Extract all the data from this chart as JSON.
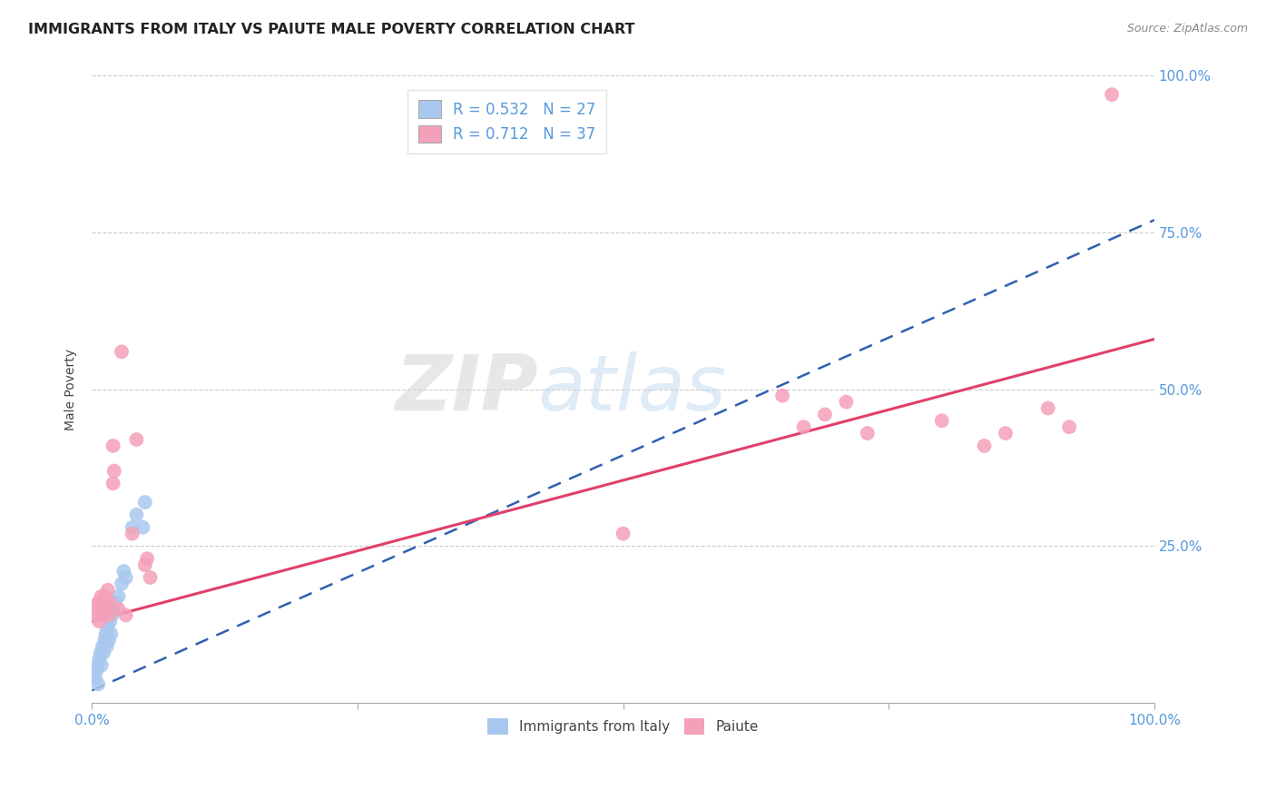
{
  "title": "IMMIGRANTS FROM ITALY VS PAIUTE MALE POVERTY CORRELATION CHART",
  "source": "Source: ZipAtlas.com",
  "ylabel": "Male Poverty",
  "xlim": [
    0.0,
    1.0
  ],
  "ylim": [
    0.0,
    1.0
  ],
  "italy_R": 0.532,
  "italy_N": 27,
  "paiute_R": 0.712,
  "paiute_N": 37,
  "italy_color": "#a8c8f0",
  "paiute_color": "#f4a0b8",
  "italy_line_color": "#3060b0",
  "paiute_line_color": "#e0406a",
  "grid_color": "#cccccc",
  "tick_color": "#5599dd",
  "italy_line_intercept": 0.02,
  "italy_line_slope": 0.75,
  "paiute_line_intercept": 0.13,
  "paiute_line_slope": 0.45,
  "italy_points": [
    [
      0.003,
      0.04
    ],
    [
      0.004,
      0.05
    ],
    [
      0.005,
      0.06
    ],
    [
      0.006,
      0.03
    ],
    [
      0.007,
      0.07
    ],
    [
      0.008,
      0.08
    ],
    [
      0.009,
      0.06
    ],
    [
      0.01,
      0.09
    ],
    [
      0.011,
      0.08
    ],
    [
      0.012,
      0.1
    ],
    [
      0.013,
      0.11
    ],
    [
      0.014,
      0.09
    ],
    [
      0.015,
      0.12
    ],
    [
      0.016,
      0.1
    ],
    [
      0.017,
      0.13
    ],
    [
      0.018,
      0.11
    ],
    [
      0.019,
      0.14
    ],
    [
      0.02,
      0.15
    ],
    [
      0.022,
      0.16
    ],
    [
      0.025,
      0.17
    ],
    [
      0.028,
      0.19
    ],
    [
      0.03,
      0.21
    ],
    [
      0.032,
      0.2
    ],
    [
      0.038,
      0.28
    ],
    [
      0.042,
      0.3
    ],
    [
      0.048,
      0.28
    ],
    [
      0.05,
      0.32
    ]
  ],
  "paiute_points": [
    [
      0.003,
      0.14
    ],
    [
      0.005,
      0.15
    ],
    [
      0.006,
      0.16
    ],
    [
      0.007,
      0.13
    ],
    [
      0.008,
      0.16
    ],
    [
      0.009,
      0.17
    ],
    [
      0.01,
      0.14
    ],
    [
      0.011,
      0.15
    ],
    [
      0.012,
      0.17
    ],
    [
      0.013,
      0.16
    ],
    [
      0.014,
      0.15
    ],
    [
      0.015,
      0.18
    ],
    [
      0.016,
      0.14
    ],
    [
      0.017,
      0.16
    ],
    [
      0.02,
      0.35
    ],
    [
      0.021,
      0.37
    ],
    [
      0.025,
      0.15
    ],
    [
      0.028,
      0.56
    ],
    [
      0.032,
      0.14
    ],
    [
      0.038,
      0.27
    ],
    [
      0.042,
      0.42
    ],
    [
      0.05,
      0.22
    ],
    [
      0.052,
      0.23
    ],
    [
      0.055,
      0.2
    ],
    [
      0.5,
      0.27
    ],
    [
      0.65,
      0.49
    ],
    [
      0.67,
      0.44
    ],
    [
      0.69,
      0.46
    ],
    [
      0.71,
      0.48
    ],
    [
      0.73,
      0.43
    ],
    [
      0.8,
      0.45
    ],
    [
      0.84,
      0.41
    ],
    [
      0.86,
      0.43
    ],
    [
      0.9,
      0.47
    ],
    [
      0.92,
      0.44
    ],
    [
      0.96,
      0.97
    ],
    [
      0.02,
      0.41
    ]
  ]
}
